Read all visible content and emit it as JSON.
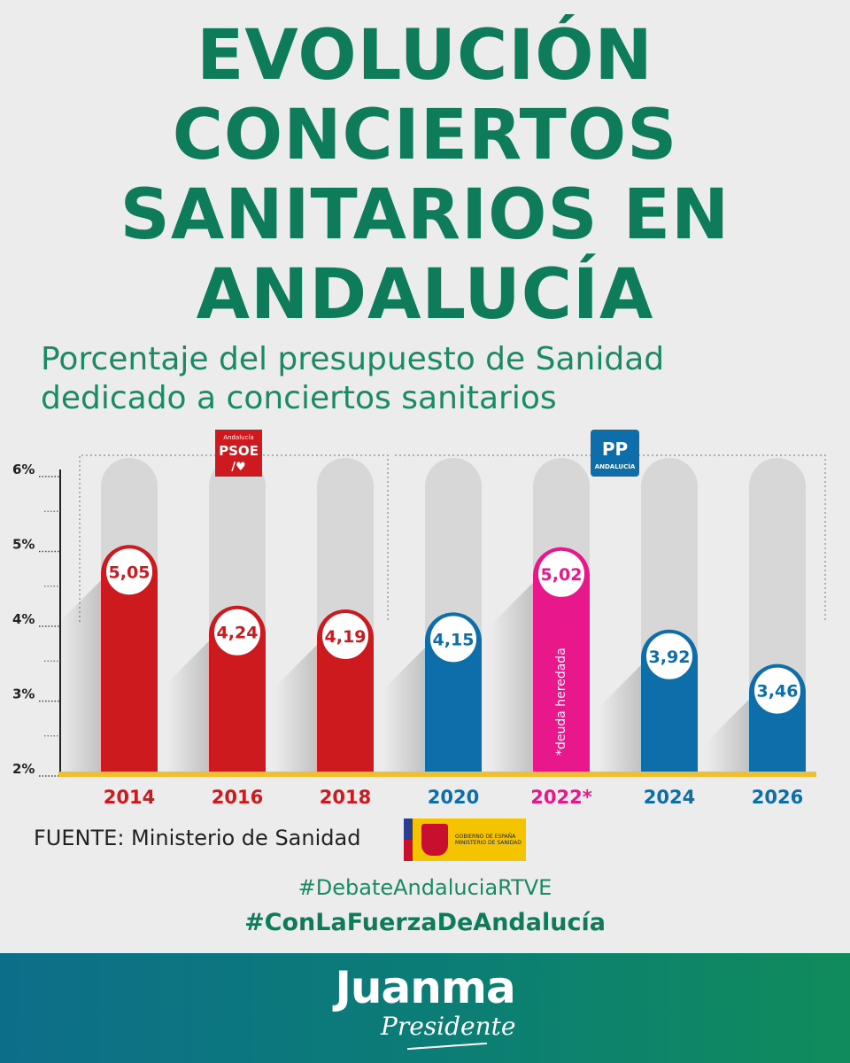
{
  "title_lines": [
    "EVOLUCIÓN",
    "CONCIERTOS",
    "SANITARIOS EN",
    "ANDALUCÍA"
  ],
  "subtitle_lines": [
    "Porcentaje del presupuesto de Sanidad",
    "dedicado a conciertos sanitarios"
  ],
  "colors": {
    "psoe": "#cc1a1f",
    "pp": "#0d6ea9",
    "highlight": "#e8178a",
    "track": "#d7d7d7",
    "axis_base": "#f0c02a",
    "title": "#0e7c5b"
  },
  "chart_data": {
    "type": "bar",
    "title": "",
    "xlabel": "",
    "ylabel": "",
    "ylim": [
      2,
      6
    ],
    "yticks": [
      "2%",
      "3%",
      "4%",
      "5%",
      "6%"
    ],
    "categories": [
      "2014",
      "2016",
      "2018",
      "2020",
      "2022*",
      "2024",
      "2026"
    ],
    "values": [
      5.05,
      4.24,
      4.19,
      4.15,
      5.02,
      3.92,
      3.46
    ],
    "data_labels": [
      "5,05",
      "4,24",
      "4,19",
      "4,15",
      "5,02",
      "3,92",
      "3,46"
    ],
    "bar_colors": [
      "psoe",
      "psoe",
      "psoe",
      "pp",
      "highlight",
      "pp",
      "pp"
    ],
    "annotations": [
      {
        "category": "2022*",
        "text": "*deuda heredada"
      }
    ],
    "party_groups": [
      {
        "logo_text": [
          "Andalucía",
          "PSOE",
          "/♥"
        ],
        "from_index": 0,
        "to_index": 2
      },
      {
        "logo_text": [
          "PP",
          "ANDALUCÍA"
        ],
        "from_index": 3,
        "to_index": 6
      }
    ]
  },
  "source": "FUENTE: Ministerio de Sanidad",
  "gov_logo_text": [
    "GOBIERNO DE ESPAÑA",
    "MINISTERIO DE SANIDAD"
  ],
  "hashtags": [
    "#DebateAndaluciaRTVE",
    "#ConLaFuerzaDeAndalucía"
  ],
  "brand": {
    "name": "Juanma",
    "tagline": "Presidente"
  }
}
